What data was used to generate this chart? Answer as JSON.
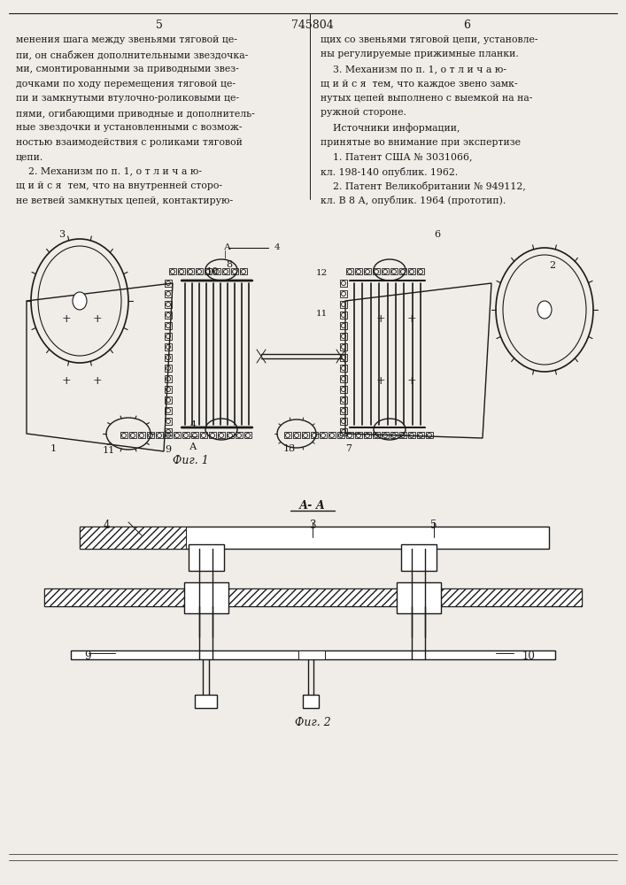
{
  "page_number_left": "5",
  "patent_number": "745804",
  "page_number_right": "6",
  "background_color": "#f0ede8",
  "line_color": "#1a1a1a",
  "text_color": "#1a1a1a",
  "fig1_caption": "Фиг. 1",
  "fig2_caption": "Фиг. 2",
  "section_label": "А- А",
  "text_left_col": [
    "менения шага между звеньями тяговой це-",
    "пи, он снабжен дополнительными звездочка-",
    "ми, смонтированными за приводными звез-",
    "дочками по ходу перемещения тяговой це-",
    "пи и замкнутыми втулочно-роликовыми це-",
    "пями, огибающими приводные и дополнитель-",
    "ные звездочки и установленными с возмож-",
    "ностью взаимодействия с роликами тяговой",
    "цепи.",
    "    2. Механизм по п. 1, о т л и ч а ю-",
    "щ и й с я  тем, что на внутренней сторо-",
    "не ветвей замкнутых цепей, контактирую-"
  ],
  "text_right_col": [
    "щих со звеньями тяговой цепи, установле-",
    "ны регулируемые прижимные планки.",
    "    3. Механизм по п. 1, о т л и ч а ю-",
    "щ и й с я  тем, что каждое звено замк-",
    "нутых цепей выполнено с выемкой на на-",
    "ружной стороне.",
    "    Источники информации,",
    "принятые во внимание при экспертизе",
    "    1. Патент США № 3031066,",
    "кл. 198-140 опублик. 1962.",
    "    2. Патент Великобритании № 949112,",
    "кл. В 8 А, опублик. 1964 (прототип)."
  ]
}
